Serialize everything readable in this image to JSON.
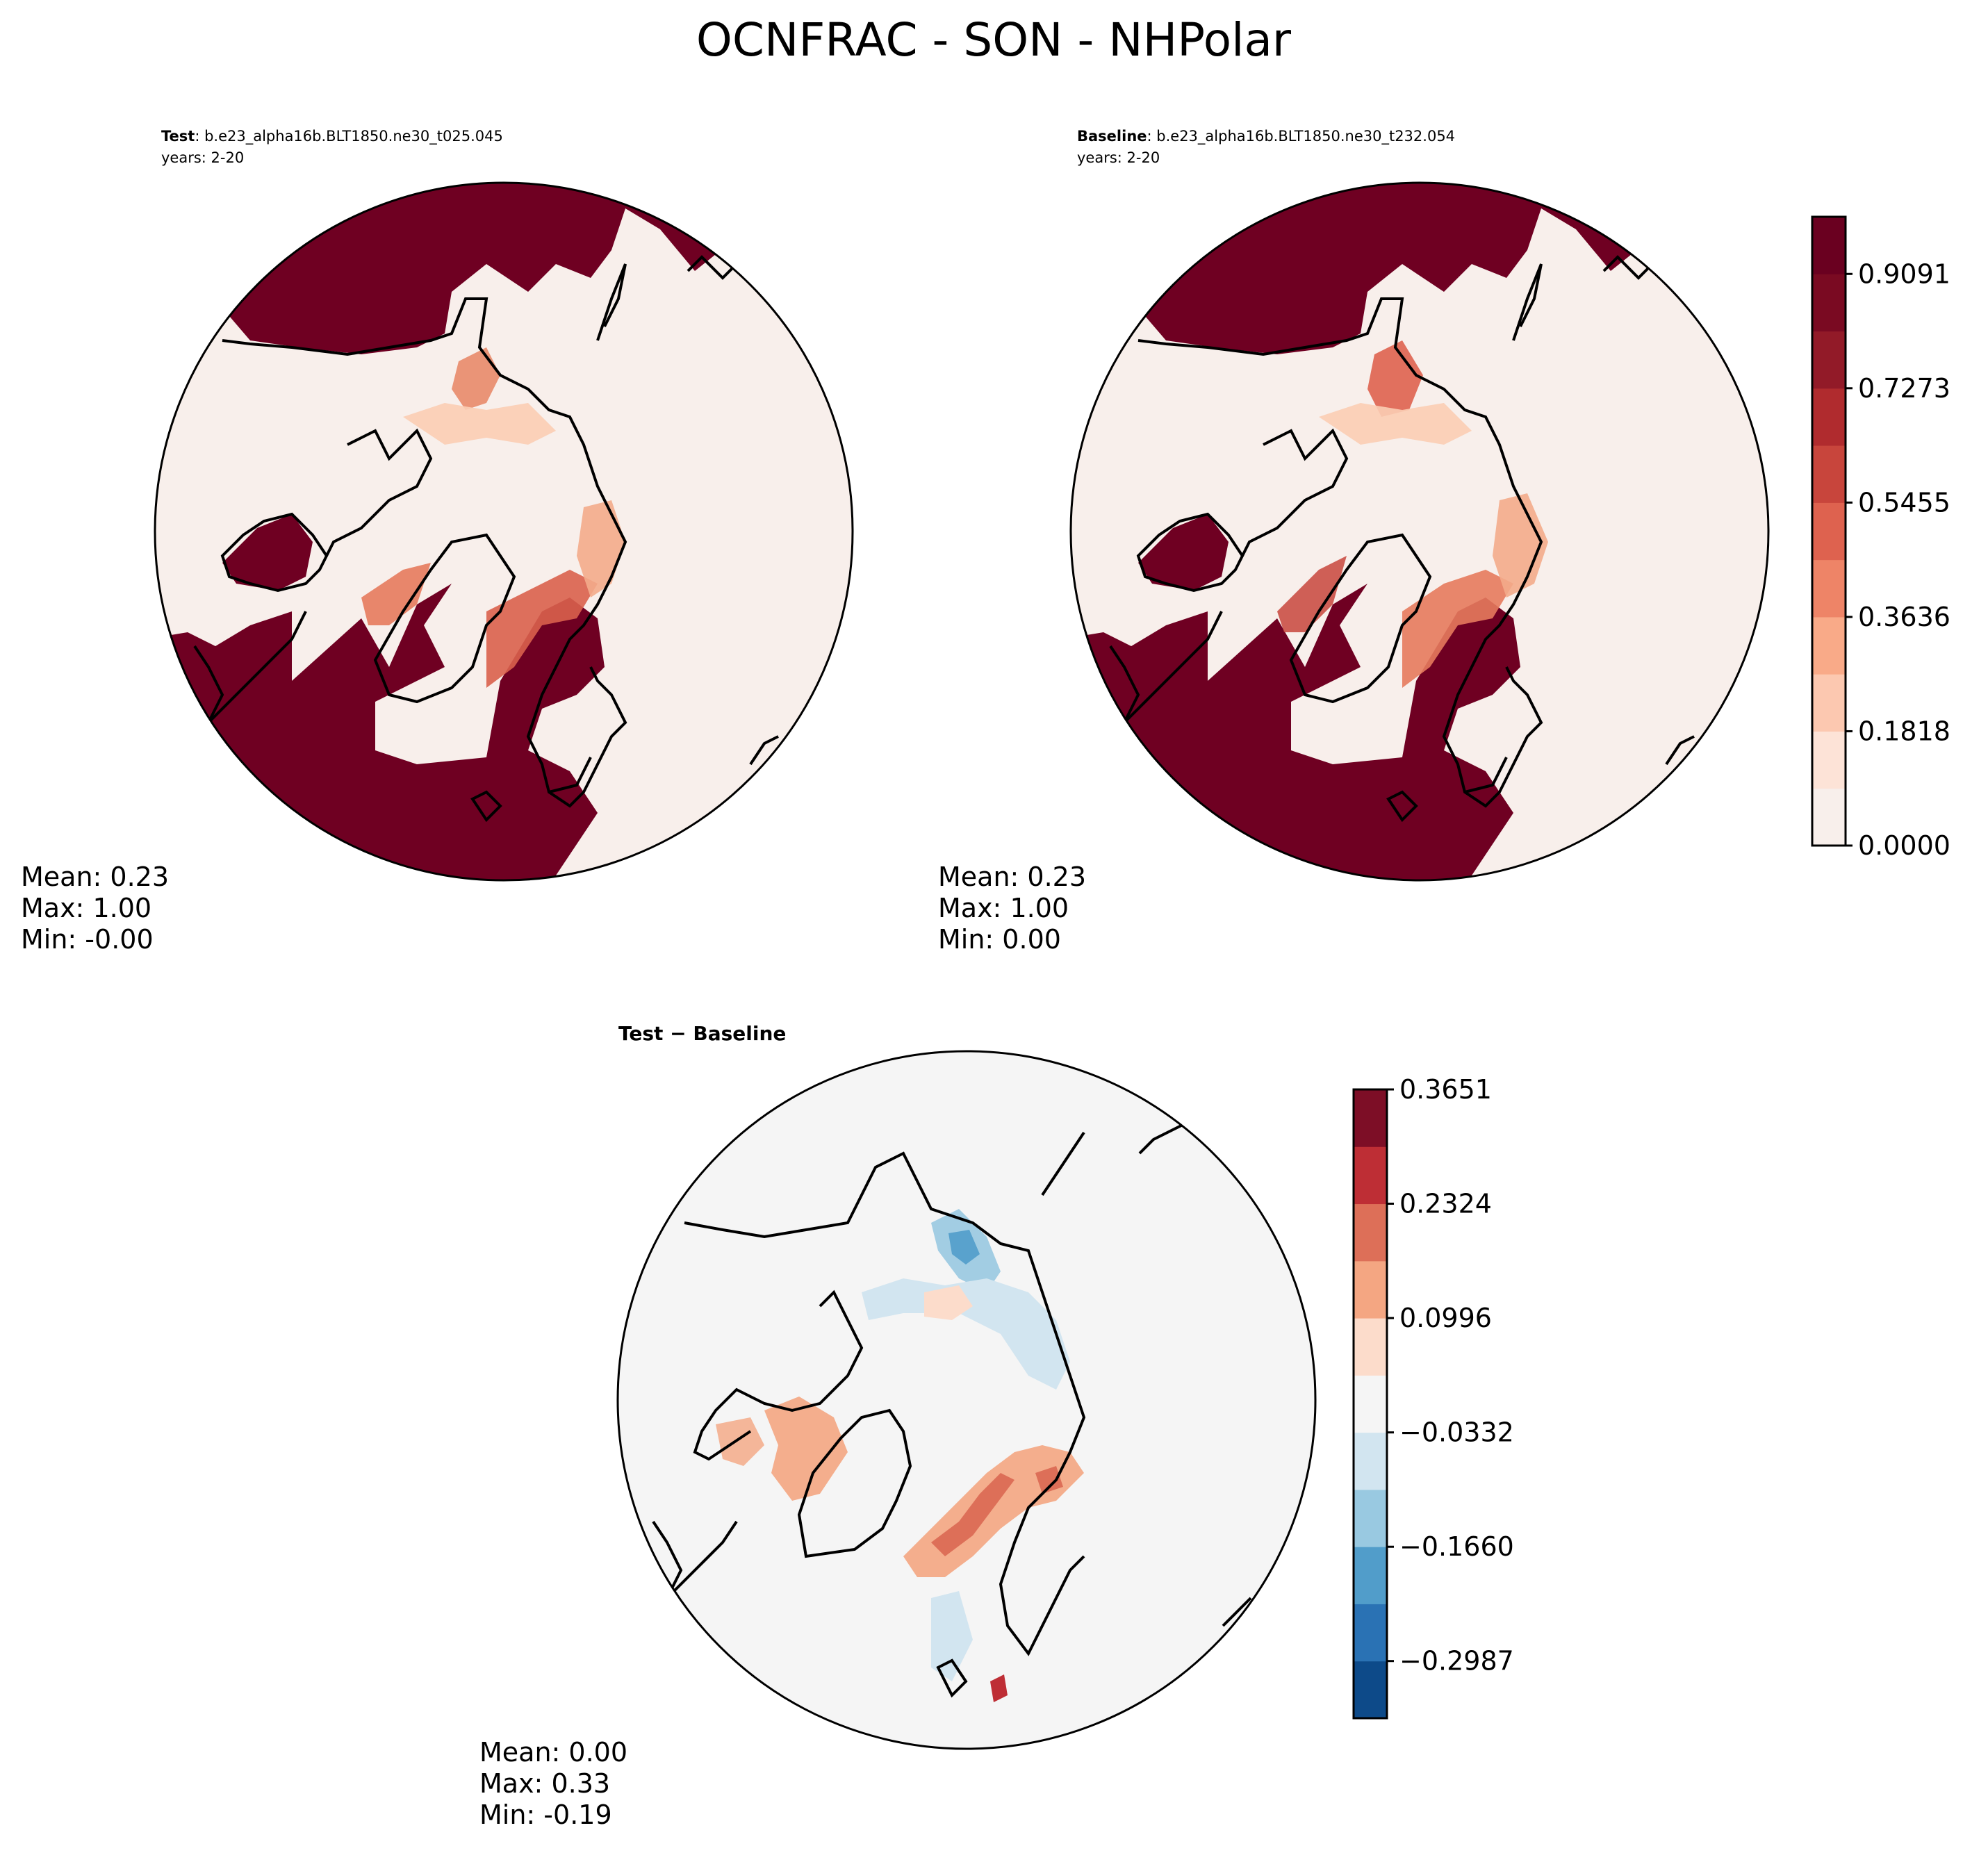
{
  "figure": {
    "title": "OCNFRAC - SON - NHPolar"
  },
  "panels": [
    {
      "id": "test",
      "label_bold": "Test",
      "label_rest": ": b.e23_alpha16b.BLT1850.ne30_t025.045",
      "years": "years: 2-20",
      "stats": {
        "mean": "Mean:  0.23",
        "max": "Max:  1.00",
        "min": "Min: -0.00"
      }
    },
    {
      "id": "baseline",
      "label_bold": "Baseline",
      "label_rest": ": b.e23_alpha16b.BLT1850.ne30_t232.054",
      "years": "years: 2-20",
      "stats": {
        "mean": "Mean:  0.23",
        "max": "Max:  1.00",
        "min": "Min:  0.00"
      }
    },
    {
      "id": "diff",
      "label_bold": "Test − Baseline",
      "label_rest": "",
      "years": "",
      "stats": {
        "mean": "Mean:  0.00",
        "max": "Max:  0.33",
        "min": "Min: -0.19"
      }
    }
  ],
  "chart_data": [
    {
      "type": "heatmap",
      "title": "Test : b.e23_alpha16b.BLT1850.ne30_t025.045",
      "projection": "north-polar-stereographic",
      "colormap": "Reds",
      "levels": [
        0.0,
        0.0909,
        0.1818,
        0.2727,
        0.3636,
        0.4545,
        0.5455,
        0.6364,
        0.7273,
        0.8182,
        0.9091,
        1.0
      ],
      "value_range": [
        0.0,
        1.0
      ],
      "stats": {
        "mean": 0.23,
        "max": 1.0,
        "min": -0.0
      }
    },
    {
      "type": "heatmap",
      "title": "Baseline : b.e23_alpha16b.BLT1850.ne30_t232.054",
      "projection": "north-polar-stereographic",
      "colormap": "Reds",
      "levels": [
        0.0,
        0.0909,
        0.1818,
        0.2727,
        0.3636,
        0.4545,
        0.5455,
        0.6364,
        0.7273,
        0.8182,
        0.9091,
        1.0
      ],
      "value_range": [
        0.0,
        1.0
      ],
      "stats": {
        "mean": 0.23,
        "max": 1.0,
        "min": 0.0
      }
    },
    {
      "type": "heatmap",
      "title": "Test − Baseline",
      "projection": "north-polar-stereographic",
      "colormap": "RdBu_r",
      "levels": [
        -0.3651,
        -0.2987,
        -0.2324,
        -0.166,
        -0.0996,
        -0.0332,
        0.0332,
        0.0996,
        0.166,
        0.2324,
        0.2987,
        0.3651
      ],
      "value_range": [
        -0.3651,
        0.3651
      ],
      "stats": {
        "mean": 0.0,
        "max": 0.33,
        "min": -0.19
      }
    }
  ],
  "colorbars": {
    "top": {
      "ticks": [
        "0.0000",
        "0.1818",
        "0.3636",
        "0.5455",
        "0.7273",
        "0.9091"
      ],
      "tick_values": [
        0.0,
        0.1818,
        0.3636,
        0.5455,
        0.7273,
        0.9091
      ],
      "range": [
        0.0,
        1.0
      ],
      "bin_colors": [
        "#f8efeb",
        "#fde3d7",
        "#fcc8b0",
        "#f9aa88",
        "#ee8467",
        "#de624f",
        "#c8453c",
        "#b02b2e",
        "#921a28",
        "#7a0a22",
        "#6a0020"
      ]
    },
    "bottom": {
      "ticks": [
        "−0.2987",
        "−0.1660",
        "−0.0332",
        "0.0996",
        "0.2324",
        "0.3651"
      ],
      "tick_values": [
        -0.2987,
        -0.166,
        -0.0332,
        0.0996,
        0.2324,
        0.3651
      ],
      "range": [
        -0.3651,
        0.3651
      ],
      "bin_colors": [
        "#0d4a89",
        "#2a72b4",
        "#519dca",
        "#99c9e1",
        "#d2e5f0",
        "#f5f5f5",
        "#fcdccb",
        "#f4a682",
        "#dd6f58",
        "#be2e35",
        "#7d0e26"
      ]
    }
  }
}
